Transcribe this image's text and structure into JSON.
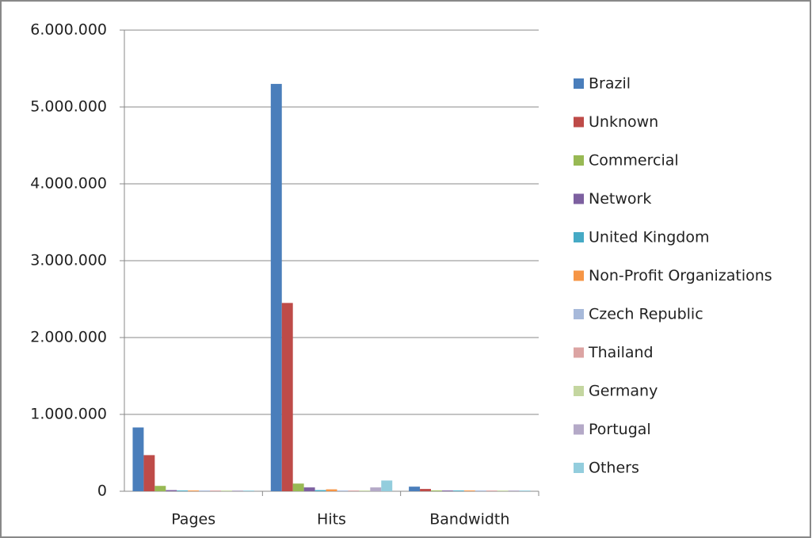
{
  "chart_data": {
    "type": "bar",
    "categories": [
      "Pages",
      "Hits",
      "Bandwidth"
    ],
    "series": [
      {
        "name": "Brazil",
        "color": "#4a7ebb",
        "values": [
          830000,
          5300000,
          60000
        ]
      },
      {
        "name": "Unknown",
        "color": "#be4b48",
        "values": [
          470000,
          2450000,
          30000
        ]
      },
      {
        "name": "Commercial",
        "color": "#98b954",
        "values": [
          70000,
          100000,
          10000
        ]
      },
      {
        "name": "Network",
        "color": "#7d60a0",
        "values": [
          15000,
          50000,
          10000
        ]
      },
      {
        "name": "United Kingdom",
        "color": "#46aac5",
        "values": [
          10000,
          15000,
          10000
        ]
      },
      {
        "name": "Non-Profit Organizations",
        "color": "#f69545",
        "values": [
          10000,
          25000,
          10000
        ]
      },
      {
        "name": "Czech Republic",
        "color": "#a7b9da",
        "values": [
          10000,
          10000,
          10000
        ]
      },
      {
        "name": "Thailand",
        "color": "#dca4a3",
        "values": [
          10000,
          10000,
          10000
        ]
      },
      {
        "name": "Germany",
        "color": "#c4d6a0",
        "values": [
          10000,
          10000,
          10000
        ]
      },
      {
        "name": "Portugal",
        "color": "#b4a9c7",
        "values": [
          10000,
          50000,
          10000
        ]
      },
      {
        "name": "Others",
        "color": "#93cddd",
        "values": [
          10000,
          140000,
          10000
        ]
      }
    ],
    "ylim": [
      0,
      6000000
    ],
    "yticks": [
      0,
      {
        "value": 1000000,
        "label": "1.000.000"
      },
      {
        "value": 2000000,
        "label": "2.000.000"
      },
      {
        "value": 3000000,
        "label": "3.000.000"
      },
      {
        "value": 4000000,
        "label": "4.000.000"
      },
      {
        "value": 5000000,
        "label": "5.000.000"
      },
      {
        "value": 6000000,
        "label": "6.000.000"
      }
    ],
    "grid": true,
    "legend": "right"
  }
}
